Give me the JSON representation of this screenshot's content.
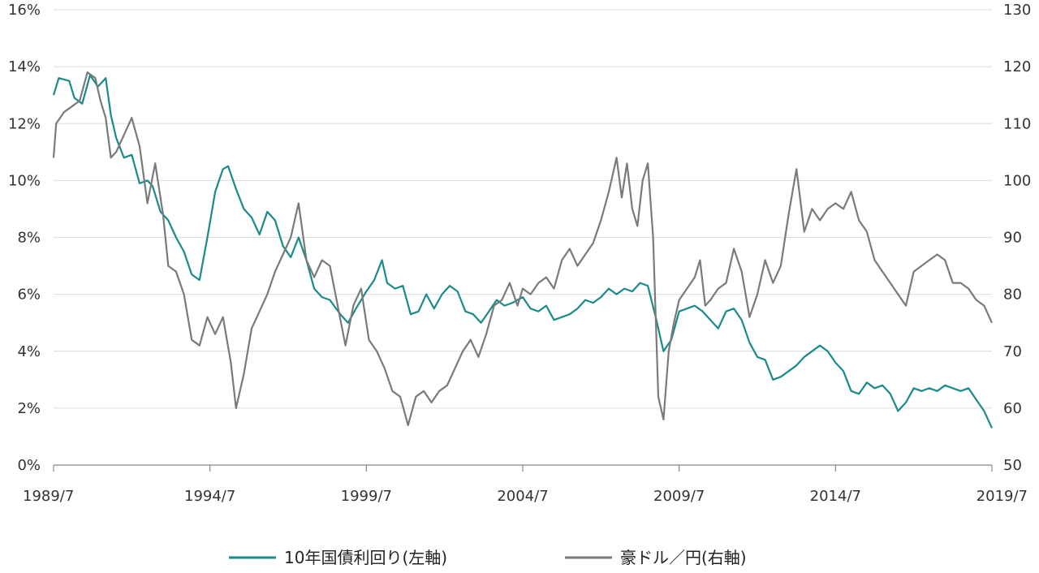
{
  "chart_data": {
    "type": "line",
    "x_ticks": [
      "1989/7",
      "1994/7",
      "1999/7",
      "2004/7",
      "2009/7",
      "2014/7",
      "2019/7"
    ],
    "x_range": [
      "1989/7",
      "2019/7"
    ],
    "left_axis": {
      "ticks": [
        "0%",
        "2%",
        "4%",
        "6%",
        "8%",
        "10%",
        "12%",
        "14%",
        "16%"
      ],
      "range": [
        0,
        16
      ]
    },
    "right_axis": {
      "ticks": [
        "50",
        "60",
        "70",
        "80",
        "90",
        "100",
        "110",
        "120",
        "130"
      ],
      "range": [
        50,
        130
      ]
    },
    "grid": "horizontal",
    "legend_position": "bottom",
    "series": [
      {
        "name": "10年国債利回り(左軸)",
        "axis": "left",
        "color": "#1a8a8a",
        "points": [
          [
            "1989/7",
            13.0
          ],
          [
            "1989/9",
            13.6
          ],
          [
            "1990/1",
            13.5
          ],
          [
            "1990/3",
            12.9
          ],
          [
            "1990/6",
            12.7
          ],
          [
            "1990/9",
            13.7
          ],
          [
            "1990/12",
            13.3
          ],
          [
            "1991/3",
            13.6
          ],
          [
            "1991/5",
            12.3
          ],
          [
            "1991/7",
            11.5
          ],
          [
            "1991/10",
            10.8
          ],
          [
            "1992/1",
            10.9
          ],
          [
            "1992/4",
            9.9
          ],
          [
            "1992/7",
            10.0
          ],
          [
            "1992/9",
            9.8
          ],
          [
            "1992/12",
            8.9
          ],
          [
            "1993/3",
            8.6
          ],
          [
            "1993/6",
            8.0
          ],
          [
            "1993/9",
            7.5
          ],
          [
            "1993/12",
            6.7
          ],
          [
            "1994/3",
            6.5
          ],
          [
            "1994/6",
            8.0
          ],
          [
            "1994/9",
            9.6
          ],
          [
            "1994/12",
            10.4
          ],
          [
            "1995/2",
            10.5
          ],
          [
            "1995/5",
            9.7
          ],
          [
            "1995/8",
            9.0
          ],
          [
            "1995/11",
            8.7
          ],
          [
            "1996/2",
            8.1
          ],
          [
            "1996/5",
            8.9
          ],
          [
            "1996/8",
            8.6
          ],
          [
            "1996/11",
            7.7
          ],
          [
            "1997/2",
            7.3
          ],
          [
            "1997/5",
            8.0
          ],
          [
            "1997/8",
            7.2
          ],
          [
            "1997/11",
            6.2
          ],
          [
            "1998/2",
            5.9
          ],
          [
            "1998/5",
            5.8
          ],
          [
            "1998/9",
            5.3
          ],
          [
            "1998/12",
            5.0
          ],
          [
            "1999/3",
            5.5
          ],
          [
            "1999/7",
            6.1
          ],
          [
            "1999/10",
            6.5
          ],
          [
            "2000/1",
            7.2
          ],
          [
            "2000/3",
            6.4
          ],
          [
            "2000/6",
            6.2
          ],
          [
            "2000/9",
            6.3
          ],
          [
            "2000/12",
            5.3
          ],
          [
            "2001/3",
            5.4
          ],
          [
            "2001/6",
            6.0
          ],
          [
            "2001/9",
            5.5
          ],
          [
            "2001/12",
            6.0
          ],
          [
            "2002/3",
            6.3
          ],
          [
            "2002/6",
            6.1
          ],
          [
            "2002/9",
            5.4
          ],
          [
            "2002/12",
            5.3
          ],
          [
            "2003/3",
            5.0
          ],
          [
            "2003/6",
            5.4
          ],
          [
            "2003/9",
            5.8
          ],
          [
            "2003/12",
            5.6
          ],
          [
            "2004/3",
            5.7
          ],
          [
            "2004/7",
            5.9
          ],
          [
            "2004/10",
            5.5
          ],
          [
            "2005/1",
            5.4
          ],
          [
            "2005/4",
            5.6
          ],
          [
            "2005/7",
            5.1
          ],
          [
            "2005/10",
            5.2
          ],
          [
            "2006/1",
            5.3
          ],
          [
            "2006/4",
            5.5
          ],
          [
            "2006/7",
            5.8
          ],
          [
            "2006/10",
            5.7
          ],
          [
            "2007/1",
            5.9
          ],
          [
            "2007/4",
            6.2
          ],
          [
            "2007/7",
            6.0
          ],
          [
            "2007/10",
            6.2
          ],
          [
            "2008/1",
            6.1
          ],
          [
            "2008/4",
            6.4
          ],
          [
            "2008/7",
            6.3
          ],
          [
            "2008/10",
            5.2
          ],
          [
            "2009/1",
            4.0
          ],
          [
            "2009/4",
            4.4
          ],
          [
            "2009/7",
            5.4
          ],
          [
            "2009/10",
            5.5
          ],
          [
            "2010/1",
            5.6
          ],
          [
            "2010/4",
            5.4
          ],
          [
            "2010/7",
            5.1
          ],
          [
            "2010/10",
            4.8
          ],
          [
            "2011/1",
            5.4
          ],
          [
            "2011/4",
            5.5
          ],
          [
            "2011/7",
            5.1
          ],
          [
            "2011/10",
            4.3
          ],
          [
            "2012/1",
            3.8
          ],
          [
            "2012/4",
            3.7
          ],
          [
            "2012/7",
            3.0
          ],
          [
            "2012/10",
            3.1
          ],
          [
            "2013/1",
            3.3
          ],
          [
            "2013/4",
            3.5
          ],
          [
            "2013/7",
            3.8
          ],
          [
            "2013/10",
            4.0
          ],
          [
            "2014/1",
            4.2
          ],
          [
            "2014/4",
            4.0
          ],
          [
            "2014/7",
            3.6
          ],
          [
            "2014/10",
            3.3
          ],
          [
            "2015/1",
            2.6
          ],
          [
            "2015/4",
            2.5
          ],
          [
            "2015/7",
            2.9
          ],
          [
            "2015/10",
            2.7
          ],
          [
            "2016/1",
            2.8
          ],
          [
            "2016/4",
            2.5
          ],
          [
            "2016/7",
            1.9
          ],
          [
            "2016/10",
            2.2
          ],
          [
            "2017/1",
            2.7
          ],
          [
            "2017/4",
            2.6
          ],
          [
            "2017/7",
            2.7
          ],
          [
            "2017/10",
            2.6
          ],
          [
            "2018/1",
            2.8
          ],
          [
            "2018/4",
            2.7
          ],
          [
            "2018/7",
            2.6
          ],
          [
            "2018/10",
            2.7
          ],
          [
            "2019/1",
            2.3
          ],
          [
            "2019/4",
            1.9
          ],
          [
            "2019/7",
            1.3
          ]
        ]
      },
      {
        "name": "豪ドル／円(右軸)",
        "axis": "right",
        "color": "#7a7a7a",
        "points": [
          [
            "1989/7",
            104
          ],
          [
            "1989/8",
            110
          ],
          [
            "1989/11",
            112
          ],
          [
            "1990/2",
            113
          ],
          [
            "1990/5",
            114
          ],
          [
            "1990/8",
            119
          ],
          [
            "1990/11",
            118
          ],
          [
            "1991/1",
            114
          ],
          [
            "1991/3",
            111
          ],
          [
            "1991/5",
            104
          ],
          [
            "1991/7",
            105
          ],
          [
            "1991/10",
            108
          ],
          [
            "1992/1",
            111
          ],
          [
            "1992/4",
            106
          ],
          [
            "1992/7",
            96
          ],
          [
            "1992/10",
            103
          ],
          [
            "1993/1",
            94
          ],
          [
            "1993/3",
            85
          ],
          [
            "1993/6",
            84
          ],
          [
            "1993/9",
            80
          ],
          [
            "1993/12",
            72
          ],
          [
            "1994/3",
            71
          ],
          [
            "1994/6",
            76
          ],
          [
            "1994/9",
            73
          ],
          [
            "1994/12",
            76
          ],
          [
            "1995/3",
            68
          ],
          [
            "1995/5",
            60
          ],
          [
            "1995/8",
            66
          ],
          [
            "1995/11",
            74
          ],
          [
            "1996/2",
            77
          ],
          [
            "1996/5",
            80
          ],
          [
            "1996/8",
            84
          ],
          [
            "1996/11",
            87
          ],
          [
            "1997/2",
            90
          ],
          [
            "1997/5",
            96
          ],
          [
            "1997/8",
            86
          ],
          [
            "1997/11",
            83
          ],
          [
            "1998/2",
            86
          ],
          [
            "1998/5",
            85
          ],
          [
            "1998/8",
            78
          ],
          [
            "1998/11",
            71
          ],
          [
            "1999/2",
            78
          ],
          [
            "1999/5",
            81
          ],
          [
            "1999/8",
            72
          ],
          [
            "1999/11",
            70
          ],
          [
            "2000/2",
            67
          ],
          [
            "2000/5",
            63
          ],
          [
            "2000/8",
            62
          ],
          [
            "2000/11",
            57
          ],
          [
            "2001/2",
            62
          ],
          [
            "2001/5",
            63
          ],
          [
            "2001/8",
            61
          ],
          [
            "2001/11",
            63
          ],
          [
            "2002/2",
            64
          ],
          [
            "2002/5",
            67
          ],
          [
            "2002/8",
            70
          ],
          [
            "2002/11",
            72
          ],
          [
            "2003/2",
            69
          ],
          [
            "2003/5",
            73
          ],
          [
            "2003/8",
            78
          ],
          [
            "2003/11",
            79
          ],
          [
            "2004/2",
            82
          ],
          [
            "2004/5",
            78
          ],
          [
            "2004/7",
            81
          ],
          [
            "2004/10",
            80
          ],
          [
            "2005/1",
            82
          ],
          [
            "2005/4",
            83
          ],
          [
            "2005/7",
            81
          ],
          [
            "2005/10",
            86
          ],
          [
            "2006/1",
            88
          ],
          [
            "2006/4",
            85
          ],
          [
            "2006/7",
            87
          ],
          [
            "2006/10",
            89
          ],
          [
            "2007/1",
            93
          ],
          [
            "2007/4",
            98
          ],
          [
            "2007/7",
            104
          ],
          [
            "2007/9",
            97
          ],
          [
            "2007/11",
            103
          ],
          [
            "2008/1",
            95
          ],
          [
            "2008/3",
            92
          ],
          [
            "2008/5",
            100
          ],
          [
            "2008/7",
            103
          ],
          [
            "2008/9",
            90
          ],
          [
            "2008/11",
            62
          ],
          [
            "2009/1",
            58
          ],
          [
            "2009/3",
            70
          ],
          [
            "2009/5",
            75
          ],
          [
            "2009/7",
            79
          ],
          [
            "2009/10",
            81
          ],
          [
            "2010/1",
            83
          ],
          [
            "2010/3",
            86
          ],
          [
            "2010/5",
            78
          ],
          [
            "2010/7",
            79
          ],
          [
            "2010/10",
            81
          ],
          [
            "2011/1",
            82
          ],
          [
            "2011/4",
            88
          ],
          [
            "2011/7",
            84
          ],
          [
            "2011/10",
            76
          ],
          [
            "2012/1",
            80
          ],
          [
            "2012/4",
            86
          ],
          [
            "2012/7",
            82
          ],
          [
            "2012/10",
            85
          ],
          [
            "2013/1",
            94
          ],
          [
            "2013/4",
            102
          ],
          [
            "2013/7",
            91
          ],
          [
            "2013/10",
            95
          ],
          [
            "2014/1",
            93
          ],
          [
            "2014/4",
            95
          ],
          [
            "2014/7",
            96
          ],
          [
            "2014/10",
            95
          ],
          [
            "2015/1",
            98
          ],
          [
            "2015/4",
            93
          ],
          [
            "2015/7",
            91
          ],
          [
            "2015/10",
            86
          ],
          [
            "2016/1",
            84
          ],
          [
            "2016/4",
            82
          ],
          [
            "2016/7",
            80
          ],
          [
            "2016/10",
            78
          ],
          [
            "2017/1",
            84
          ],
          [
            "2017/4",
            85
          ],
          [
            "2017/7",
            86
          ],
          [
            "2017/10",
            87
          ],
          [
            "2018/1",
            86
          ],
          [
            "2018/4",
            82
          ],
          [
            "2018/7",
            82
          ],
          [
            "2018/10",
            81
          ],
          [
            "2019/1",
            79
          ],
          [
            "2019/4",
            78
          ],
          [
            "2019/7",
            75
          ]
        ]
      }
    ]
  }
}
